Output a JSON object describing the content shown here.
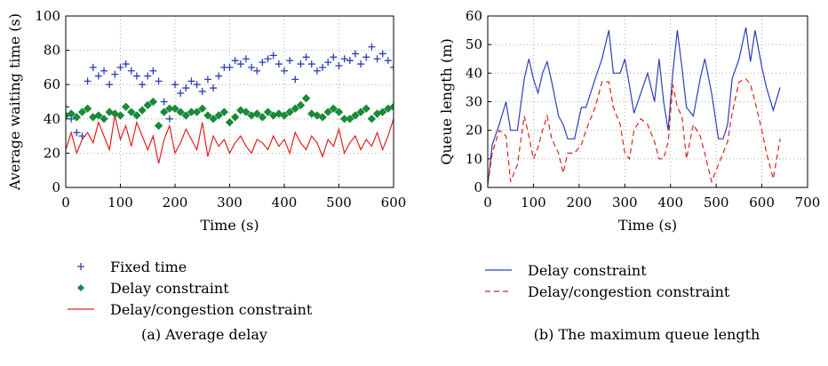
{
  "chart_data": [
    {
      "type": "line",
      "xlabel": "Time (s)",
      "ylabel": "Average waiting time (s)",
      "xlim": [
        0,
        600
      ],
      "ylim": [
        0,
        100
      ],
      "xticks": [
        "0",
        "100",
        "200",
        "300",
        "400",
        "500",
        "600"
      ],
      "yticks": [
        "0",
        "20",
        "40",
        "60",
        "80",
        "100"
      ],
      "grid": true,
      "legend_position": "below",
      "caption": "(a)   Average delay",
      "series": [
        {
          "name": "Fixed time",
          "marker": "+",
          "color": "#2b3fb6",
          "x": [
            0,
            10,
            20,
            30,
            40,
            50,
            60,
            70,
            80,
            90,
            100,
            110,
            120,
            130,
            140,
            150,
            160,
            170,
            180,
            190,
            200,
            210,
            220,
            230,
            240,
            250,
            260,
            270,
            280,
            290,
            300,
            310,
            320,
            330,
            340,
            350,
            360,
            370,
            380,
            390,
            400,
            410,
            420,
            430,
            440,
            450,
            460,
            470,
            480,
            490,
            500,
            510,
            520,
            530,
            540,
            550,
            560,
            570,
            580,
            590,
            600
          ],
          "y": [
            47,
            40,
            32,
            30,
            62,
            70,
            65,
            68,
            60,
            66,
            70,
            72,
            68,
            65,
            60,
            65,
            68,
            62,
            50,
            40,
            60,
            55,
            58,
            62,
            60,
            56,
            63,
            58,
            65,
            70,
            70,
            74,
            72,
            75,
            70,
            68,
            73,
            75,
            77,
            72,
            68,
            74,
            63,
            72,
            76,
            72,
            68,
            70,
            73,
            76,
            71,
            75,
            74,
            78,
            72,
            76,
            82,
            75,
            78,
            74,
            70
          ]
        },
        {
          "name": "Delay constraint",
          "marker": "diamond",
          "color": "#1a8a3a",
          "x": [
            0,
            10,
            20,
            30,
            40,
            50,
            60,
            70,
            80,
            90,
            100,
            110,
            120,
            130,
            140,
            150,
            160,
            170,
            180,
            190,
            200,
            210,
            220,
            230,
            240,
            250,
            260,
            270,
            280,
            290,
            300,
            310,
            320,
            330,
            340,
            350,
            360,
            370,
            380,
            390,
            400,
            410,
            420,
            430,
            440,
            450,
            460,
            470,
            480,
            490,
            500,
            510,
            520,
            530,
            540,
            550,
            560,
            570,
            580,
            590,
            600
          ],
          "y": [
            42,
            43,
            41,
            44,
            46,
            41,
            42,
            40,
            44,
            43,
            42,
            47,
            44,
            42,
            45,
            48,
            50,
            36,
            44,
            46,
            46,
            44,
            42,
            44,
            44,
            46,
            42,
            40,
            42,
            44,
            38,
            41,
            45,
            44,
            42,
            43,
            41,
            44,
            42,
            43,
            42,
            44,
            46,
            48,
            52,
            43,
            42,
            41,
            44,
            46,
            44,
            40,
            40,
            42,
            44,
            46,
            40,
            43,
            44,
            46,
            47
          ]
        },
        {
          "name": "Delay/congestion constraint",
          "marker": "none",
          "color": "#e02020",
          "x": [
            0,
            10,
            20,
            30,
            40,
            50,
            60,
            70,
            80,
            90,
            100,
            110,
            120,
            130,
            140,
            150,
            160,
            170,
            180,
            190,
            200,
            210,
            220,
            230,
            240,
            250,
            260,
            270,
            280,
            290,
            300,
            310,
            320,
            330,
            340,
            350,
            360,
            370,
            380,
            390,
            400,
            410,
            420,
            430,
            440,
            450,
            460,
            470,
            480,
            490,
            500,
            510,
            520,
            530,
            540,
            550,
            560,
            570,
            580,
            590,
            600
          ],
          "y": [
            22,
            32,
            20,
            28,
            32,
            26,
            38,
            30,
            22,
            42,
            28,
            36,
            24,
            38,
            30,
            22,
            30,
            14,
            28,
            36,
            20,
            26,
            34,
            28,
            22,
            38,
            18,
            30,
            24,
            28,
            20,
            26,
            30,
            24,
            20,
            28,
            26,
            22,
            30,
            24,
            28,
            20,
            32,
            26,
            22,
            30,
            26,
            18,
            28,
            24,
            34,
            20,
            26,
            30,
            22,
            28,
            24,
            32,
            22,
            30,
            40
          ]
        }
      ]
    },
    {
      "type": "line",
      "xlabel": "Time (s)",
      "ylabel": "Queue length (m)",
      "xlim": [
        0,
        700
      ],
      "ylim": [
        0,
        60
      ],
      "xticks": [
        "0",
        "100",
        "200",
        "300",
        "400",
        "500",
        "600",
        "700"
      ],
      "yticks": [
        "0",
        "10",
        "20",
        "30",
        "40",
        "50",
        "60"
      ],
      "grid": true,
      "legend_position": "below",
      "caption": "(b)  The maximum queue length",
      "series": [
        {
          "name": "Delay constraint",
          "style": "solid",
          "color": "#2b3fb6",
          "x": [
            0,
            10,
            25,
            40,
            50,
            65,
            80,
            90,
            100,
            110,
            120,
            130,
            140,
            155,
            165,
            175,
            190,
            205,
            215,
            235,
            250,
            265,
            275,
            290,
            300,
            310,
            320,
            335,
            350,
            365,
            375,
            385,
            395,
            405,
            415,
            425,
            435,
            450,
            465,
            475,
            490,
            505,
            515,
            525,
            535,
            550,
            565,
            575,
            585,
            600,
            610,
            625,
            640
          ],
          "y": [
            1,
            15,
            22,
            30,
            20,
            20,
            38,
            45,
            38,
            33,
            40,
            44,
            37,
            25,
            22,
            17,
            17,
            28,
            28,
            38,
            45,
            55,
            40,
            40,
            45,
            36,
            26,
            33,
            40,
            30,
            45,
            30,
            20,
            40,
            55,
            42,
            28,
            25,
            38,
            45,
            33,
            17,
            17,
            22,
            38,
            45,
            56,
            44,
            55,
            42,
            35,
            27,
            35
          ]
        },
        {
          "name": "Delay/congestion constraint",
          "style": "dashed",
          "color": "#e02020",
          "x": [
            0,
            10,
            25,
            40,
            50,
            65,
            80,
            90,
            100,
            110,
            120,
            130,
            140,
            155,
            165,
            175,
            190,
            205,
            215,
            235,
            250,
            265,
            275,
            290,
            300,
            310,
            320,
            335,
            350,
            365,
            375,
            385,
            395,
            405,
            415,
            425,
            435,
            450,
            465,
            475,
            490,
            505,
            515,
            525,
            535,
            550,
            565,
            575,
            585,
            600,
            610,
            625,
            640
          ],
          "y": [
            1,
            12,
            20,
            18,
            2,
            8,
            25,
            18,
            10,
            14,
            20,
            25,
            17,
            12,
            5,
            12,
            12,
            15,
            20,
            28,
            37,
            37,
            28,
            22,
            12,
            10,
            20,
            24,
            22,
            16,
            10,
            10,
            16,
            36,
            28,
            25,
            10,
            22,
            18,
            12,
            2,
            8,
            12,
            16,
            26,
            37,
            38,
            36,
            30,
            20,
            12,
            3,
            17
          ]
        }
      ]
    }
  ]
}
